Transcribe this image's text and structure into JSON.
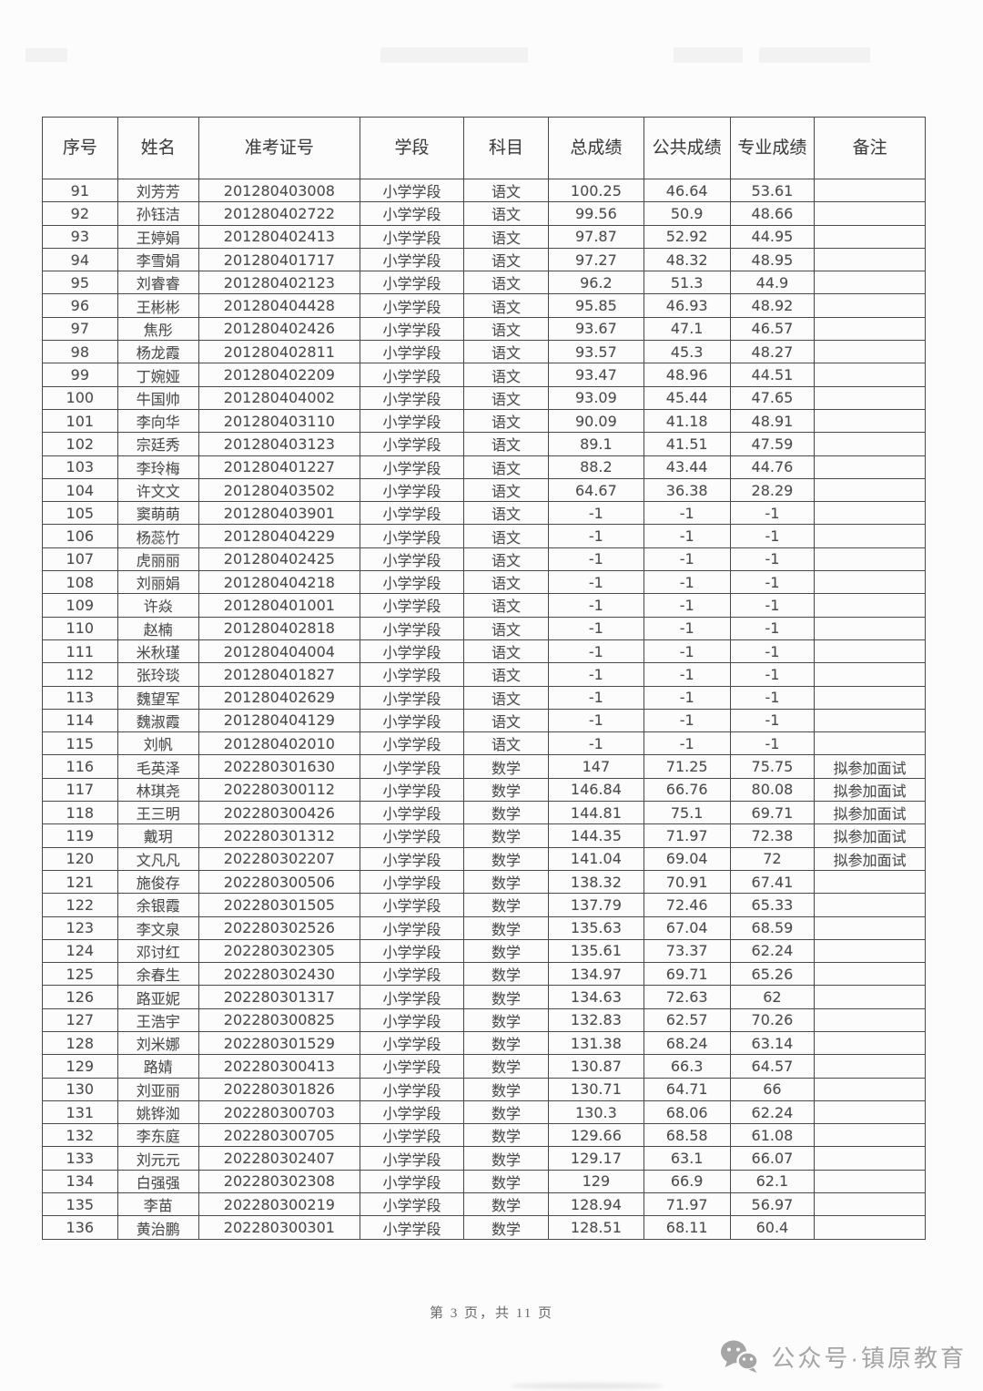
{
  "table": {
    "columns": [
      "序号",
      "姓名",
      "准考证号",
      "学段",
      "科目",
      "总成绩",
      "公共成绩",
      "专业成绩",
      "备注"
    ],
    "rows": [
      [
        "91",
        "刘芳芳",
        "201280403008",
        "小学学段",
        "语文",
        "100.25",
        "46.64",
        "53.61",
        ""
      ],
      [
        "92",
        "孙钰洁",
        "201280402722",
        "小学学段",
        "语文",
        "99.56",
        "50.9",
        "48.66",
        ""
      ],
      [
        "93",
        "王婷娟",
        "201280402413",
        "小学学段",
        "语文",
        "97.87",
        "52.92",
        "44.95",
        ""
      ],
      [
        "94",
        "李雪娟",
        "201280401717",
        "小学学段",
        "语文",
        "97.27",
        "48.32",
        "48.95",
        ""
      ],
      [
        "95",
        "刘睿睿",
        "201280402123",
        "小学学段",
        "语文",
        "96.2",
        "51.3",
        "44.9",
        ""
      ],
      [
        "96",
        "王彬彬",
        "201280404428",
        "小学学段",
        "语文",
        "95.85",
        "46.93",
        "48.92",
        ""
      ],
      [
        "97",
        "焦彤",
        "201280402426",
        "小学学段",
        "语文",
        "93.67",
        "47.1",
        "46.57",
        ""
      ],
      [
        "98",
        "杨龙霞",
        "201280402811",
        "小学学段",
        "语文",
        "93.57",
        "45.3",
        "48.27",
        ""
      ],
      [
        "99",
        "丁婉娅",
        "201280402209",
        "小学学段",
        "语文",
        "93.47",
        "48.96",
        "44.51",
        ""
      ],
      [
        "100",
        "牛国帅",
        "201280404002",
        "小学学段",
        "语文",
        "93.09",
        "45.44",
        "47.65",
        ""
      ],
      [
        "101",
        "李向华",
        "201280403110",
        "小学学段",
        "语文",
        "90.09",
        "41.18",
        "48.91",
        ""
      ],
      [
        "102",
        "宗廷秀",
        "201280403123",
        "小学学段",
        "语文",
        "89.1",
        "41.51",
        "47.59",
        ""
      ],
      [
        "103",
        "李玲梅",
        "201280401227",
        "小学学段",
        "语文",
        "88.2",
        "43.44",
        "44.76",
        ""
      ],
      [
        "104",
        "许文文",
        "201280403502",
        "小学学段",
        "语文",
        "64.67",
        "36.38",
        "28.29",
        ""
      ],
      [
        "105",
        "窦萌萌",
        "201280403901",
        "小学学段",
        "语文",
        "-1",
        "-1",
        "-1",
        ""
      ],
      [
        "106",
        "杨蕊竹",
        "201280404229",
        "小学学段",
        "语文",
        "-1",
        "-1",
        "-1",
        ""
      ],
      [
        "107",
        "虎丽丽",
        "201280402425",
        "小学学段",
        "语文",
        "-1",
        "-1",
        "-1",
        ""
      ],
      [
        "108",
        "刘丽娟",
        "201280404218",
        "小学学段",
        "语文",
        "-1",
        "-1",
        "-1",
        ""
      ],
      [
        "109",
        "许焱",
        "201280401001",
        "小学学段",
        "语文",
        "-1",
        "-1",
        "-1",
        ""
      ],
      [
        "110",
        "赵楠",
        "201280402818",
        "小学学段",
        "语文",
        "-1",
        "-1",
        "-1",
        ""
      ],
      [
        "111",
        "米秋瑾",
        "201280404004",
        "小学学段",
        "语文",
        "-1",
        "-1",
        "-1",
        ""
      ],
      [
        "112",
        "张玲琰",
        "201280401827",
        "小学学段",
        "语文",
        "-1",
        "-1",
        "-1",
        ""
      ],
      [
        "113",
        "魏望军",
        "201280402629",
        "小学学段",
        "语文",
        "-1",
        "-1",
        "-1",
        ""
      ],
      [
        "114",
        "魏淑霞",
        "201280404129",
        "小学学段",
        "语文",
        "-1",
        "-1",
        "-1",
        ""
      ],
      [
        "115",
        "刘帆",
        "201280402010",
        "小学学段",
        "语文",
        "-1",
        "-1",
        "-1",
        ""
      ],
      [
        "116",
        "毛英泽",
        "202280301630",
        "小学学段",
        "数学",
        "147",
        "71.25",
        "75.75",
        "拟参加面试"
      ],
      [
        "117",
        "林琪尧",
        "202280300112",
        "小学学段",
        "数学",
        "146.84",
        "66.76",
        "80.08",
        "拟参加面试"
      ],
      [
        "118",
        "王三明",
        "202280300426",
        "小学学段",
        "数学",
        "144.81",
        "75.1",
        "69.71",
        "拟参加面试"
      ],
      [
        "119",
        "戴玥",
        "202280301312",
        "小学学段",
        "数学",
        "144.35",
        "71.97",
        "72.38",
        "拟参加面试"
      ],
      [
        "120",
        "文凡凡",
        "202280302207",
        "小学学段",
        "数学",
        "141.04",
        "69.04",
        "72",
        "拟参加面试"
      ],
      [
        "121",
        "施俊存",
        "202280300506",
        "小学学段",
        "数学",
        "138.32",
        "70.91",
        "67.41",
        ""
      ],
      [
        "122",
        "余银霞",
        "202280301505",
        "小学学段",
        "数学",
        "137.79",
        "72.46",
        "65.33",
        ""
      ],
      [
        "123",
        "李文泉",
        "202280302526",
        "小学学段",
        "数学",
        "135.63",
        "67.04",
        "68.59",
        ""
      ],
      [
        "124",
        "邓讨红",
        "202280302305",
        "小学学段",
        "数学",
        "135.61",
        "73.37",
        "62.24",
        ""
      ],
      [
        "125",
        "余春生",
        "202280302430",
        "小学学段",
        "数学",
        "134.97",
        "69.71",
        "65.26",
        ""
      ],
      [
        "126",
        "路亚妮",
        "202280301317",
        "小学学段",
        "数学",
        "134.63",
        "72.63",
        "62",
        ""
      ],
      [
        "127",
        "王浩宇",
        "202280300825",
        "小学学段",
        "数学",
        "132.83",
        "62.57",
        "70.26",
        ""
      ],
      [
        "128",
        "刘米娜",
        "202280301529",
        "小学学段",
        "数学",
        "131.38",
        "68.24",
        "63.14",
        ""
      ],
      [
        "129",
        "路婧",
        "202280300413",
        "小学学段",
        "数学",
        "130.87",
        "66.3",
        "64.57",
        ""
      ],
      [
        "130",
        "刘亚丽",
        "202280301826",
        "小学学段",
        "数学",
        "130.71",
        "64.71",
        "66",
        ""
      ],
      [
        "131",
        "姚铧洳",
        "202280300703",
        "小学学段",
        "数学",
        "130.3",
        "68.06",
        "62.24",
        ""
      ],
      [
        "132",
        "李东庭",
        "202280300705",
        "小学学段",
        "数学",
        "129.66",
        "68.58",
        "61.08",
        ""
      ],
      [
        "133",
        "刘元元",
        "202280302407",
        "小学学段",
        "数学",
        "129.17",
        "63.1",
        "66.07",
        ""
      ],
      [
        "134",
        "白强强",
        "202280302308",
        "小学学段",
        "数学",
        "129",
        "66.9",
        "62.1",
        ""
      ],
      [
        "135",
        "李苗",
        "202280300219",
        "小学学段",
        "数学",
        "128.94",
        "71.97",
        "56.97",
        ""
      ],
      [
        "136",
        "黄治鹏",
        "202280300301",
        "小学学段",
        "数学",
        "128.51",
        "68.11",
        "60.4",
        ""
      ]
    ]
  },
  "footer": {
    "page_text": "第 3 页，共 11 页"
  },
  "credit": {
    "icon": "wechat-icon",
    "text": "公众号·镇原教育",
    "color": "#a5a5a5"
  }
}
